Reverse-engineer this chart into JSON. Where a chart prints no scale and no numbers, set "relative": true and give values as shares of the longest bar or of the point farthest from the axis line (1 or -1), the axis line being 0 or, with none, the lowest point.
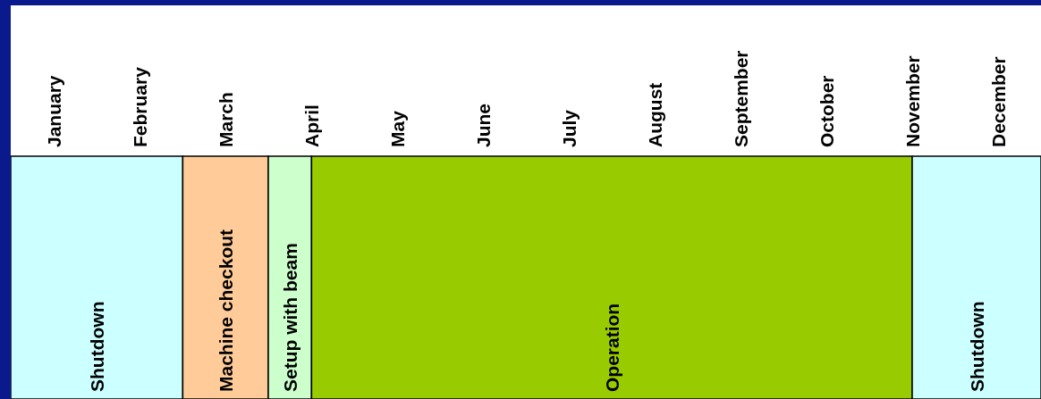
{
  "chart_data": {
    "type": "bar",
    "orientation": "horizontal",
    "stacked": true,
    "relative": true,
    "categories": [
      null
    ],
    "annotations": [
      "January",
      "February",
      "March",
      "April",
      "May",
      "June",
      "July",
      "August",
      "September",
      "October",
      "November",
      "December"
    ],
    "series": [
      {
        "name": "Shutdown",
        "color": "#ccffff",
        "values": [
          0.167
        ]
      },
      {
        "name": "Machine checkout",
        "color": "#ffcc99",
        "values": [
          0.083
        ]
      },
      {
        "name": "Setup with beam",
        "color": "#ccffcc",
        "values": [
          0.042
        ]
      },
      {
        "name": "Operation",
        "color": "#99cc00",
        "values": [
          0.583
        ]
      },
      {
        "name": "Shutdown",
        "color": "#ccffff",
        "values": [
          0.125
        ]
      }
    ]
  }
}
